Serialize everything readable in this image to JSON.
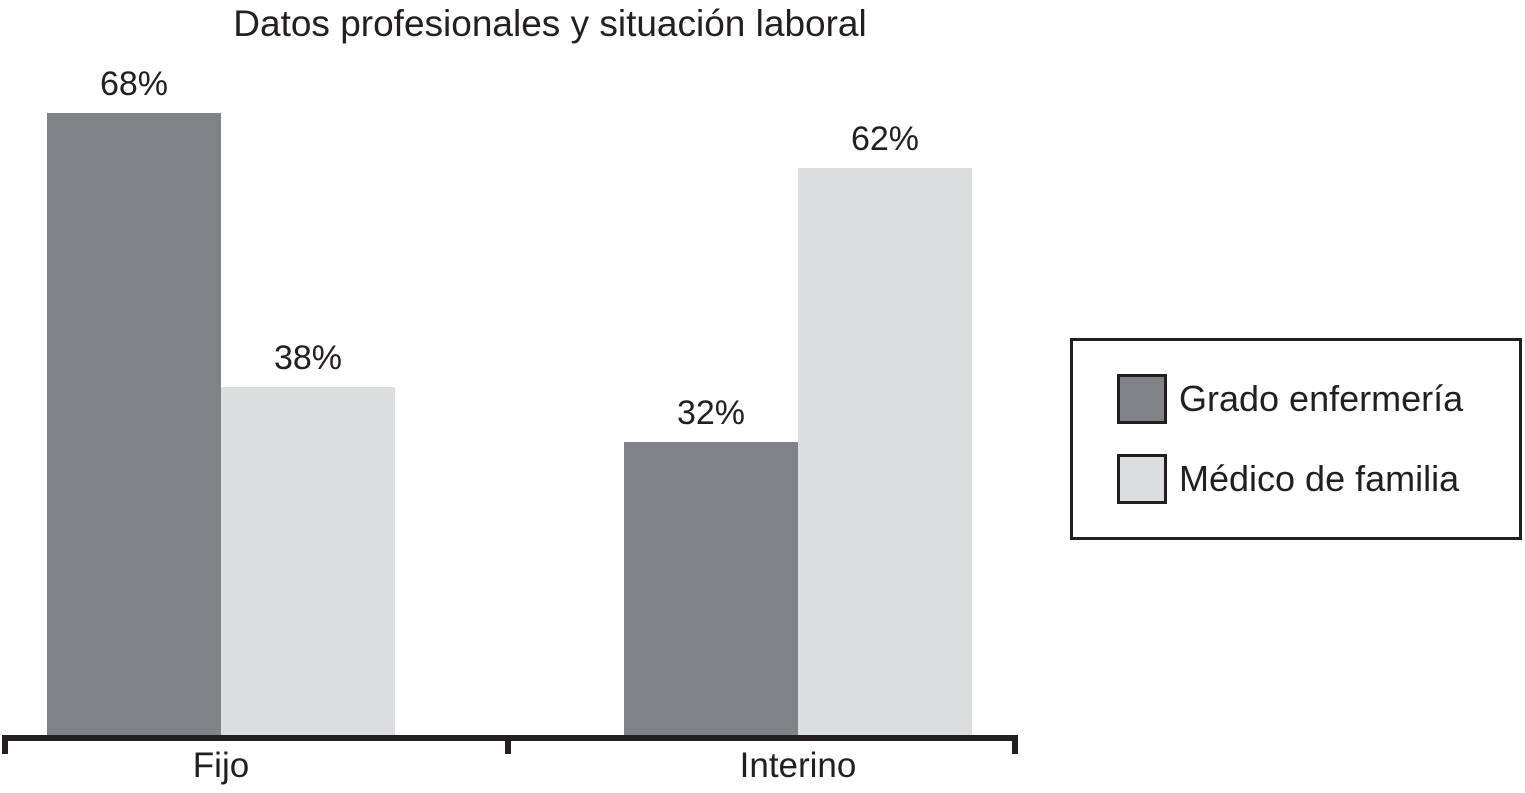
{
  "figure": {
    "title": "Datos profesionales y situación laboral"
  },
  "chart_data": {
    "type": "bar",
    "title": "Datos profesionales y situación laboral",
    "categories": [
      "Fijo",
      "Interino"
    ],
    "series": [
      {
        "name": "Grado enfermería",
        "color": "#808285",
        "values": [
          68,
          32
        ]
      },
      {
        "name": "Médico de familia",
        "color": "#dcddde",
        "values": [
          38,
          62
        ]
      }
    ],
    "data_labels": [
      "68%",
      "38%",
      "32%",
      "62%"
    ],
    "value_suffix": "%",
    "xlabel": "",
    "ylabel": "",
    "ylim": [
      0,
      100
    ],
    "grid": false,
    "legend_position": "right",
    "axis_color": "#231f20",
    "text_color": "#231f20",
    "background_color": "#ffffff"
  },
  "legend": {
    "items": [
      {
        "label": "Grado enfermería",
        "color": "#808285"
      },
      {
        "label": "Médico de familia",
        "color": "#dcddde"
      }
    ]
  }
}
